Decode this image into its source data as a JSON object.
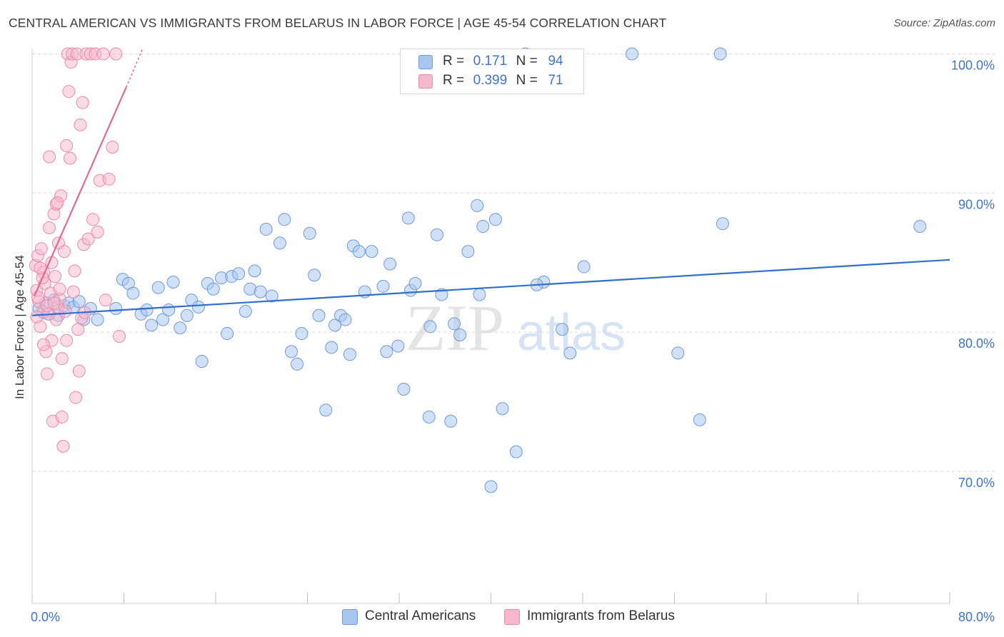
{
  "title": "CENTRAL AMERICAN VS IMMIGRANTS FROM BELARUS IN LABOR FORCE | AGE 45-54 CORRELATION CHART",
  "source": "Source: ZipAtlas.com",
  "watermark": {
    "zip": "ZIP",
    "atlas": "atlas"
  },
  "legend": {
    "r_label": "R =",
    "n_label": "N =",
    "series": [
      {
        "name": "Central Americans",
        "r": "0.171",
        "n": "94"
      },
      {
        "name": "Immigrants from Belarus",
        "r": "0.399",
        "n": "71"
      }
    ]
  },
  "colors": {
    "blue_fill": "#a9c7ee",
    "blue_stroke": "#6f9ad8",
    "blue_line": "#2f6fcd",
    "pink_fill": "#f6b8cb",
    "pink_stroke": "#ea8aa9",
    "pink_line": "#e2679a",
    "axis_text": "#3f74c8",
    "grid": "#d9d9d9"
  },
  "chart_data": {
    "type": "scatter",
    "title": "CENTRAL AMERICAN VS IMMIGRANTS FROM BELARUS IN LABOR FORCE | AGE 45-54 CORRELATION CHART",
    "xlabel": "",
    "ylabel": "In Labor Force | Age 45-54",
    "xlim": [
      0,
      80
    ],
    "ylim": [
      60.5,
      101
    ],
    "x_tick_labels": [
      "0.0%",
      "80.0%"
    ],
    "y_ticks": [
      70,
      80,
      90,
      100
    ],
    "y_tick_labels": [
      "70.0%",
      "80.0%",
      "90.0%",
      "100.0%"
    ],
    "grid": "horizontal dashed",
    "legend_position": "top-center",
    "series": [
      {
        "name": "Central Americans",
        "r": 0.171,
        "n": 94,
        "trend": {
          "x": [
            0,
            80
          ],
          "y": [
            81.2,
            85.2
          ]
        },
        "points": [
          [
            0.6,
            81.7
          ],
          [
            1.0,
            81.4
          ],
          [
            1.2,
            82.1
          ],
          [
            1.5,
            81.3
          ],
          [
            1.9,
            82.3
          ],
          [
            2.3,
            81.2
          ],
          [
            2.8,
            81.9
          ],
          [
            3.2,
            82.1
          ],
          [
            3.6,
            81.8
          ],
          [
            4.1,
            82.2
          ],
          [
            4.5,
            80.9
          ],
          [
            5.1,
            81.7
          ],
          [
            5.7,
            80.9
          ],
          [
            7.3,
            81.7
          ],
          [
            7.9,
            83.8
          ],
          [
            8.4,
            83.5
          ],
          [
            8.8,
            82.8
          ],
          [
            9.5,
            81.3
          ],
          [
            10.0,
            81.6
          ],
          [
            10.4,
            80.5
          ],
          [
            11.0,
            83.2
          ],
          [
            11.4,
            80.9
          ],
          [
            11.9,
            81.6
          ],
          [
            12.3,
            83.6
          ],
          [
            12.9,
            80.3
          ],
          [
            13.5,
            81.2
          ],
          [
            13.9,
            82.3
          ],
          [
            14.5,
            81.8
          ],
          [
            14.8,
            77.9
          ],
          [
            15.3,
            83.5
          ],
          [
            15.8,
            83.1
          ],
          [
            16.5,
            83.9
          ],
          [
            17.0,
            79.9
          ],
          [
            17.4,
            84.0
          ],
          [
            18.0,
            84.2
          ],
          [
            18.6,
            81.5
          ],
          [
            19.0,
            83.1
          ],
          [
            19.4,
            84.4
          ],
          [
            19.9,
            82.9
          ],
          [
            20.4,
            87.4
          ],
          [
            20.9,
            82.6
          ],
          [
            21.6,
            86.4
          ],
          [
            22.0,
            88.1
          ],
          [
            22.6,
            78.6
          ],
          [
            23.1,
            77.7
          ],
          [
            23.5,
            79.9
          ],
          [
            24.2,
            87.1
          ],
          [
            24.6,
            84.1
          ],
          [
            25.0,
            81.2
          ],
          [
            25.6,
            74.4
          ],
          [
            26.1,
            78.9
          ],
          [
            26.4,
            80.5
          ],
          [
            26.9,
            81.2
          ],
          [
            27.3,
            80.9
          ],
          [
            27.7,
            78.4
          ],
          [
            28.0,
            86.2
          ],
          [
            28.5,
            85.8
          ],
          [
            29.0,
            82.9
          ],
          [
            29.6,
            85.8
          ],
          [
            30.6,
            83.3
          ],
          [
            30.9,
            78.6
          ],
          [
            31.2,
            84.9
          ],
          [
            31.9,
            79.0
          ],
          [
            32.4,
            75.9
          ],
          [
            32.8,
            88.2
          ],
          [
            33.0,
            83.0
          ],
          [
            33.4,
            83.5
          ],
          [
            34.6,
            73.9
          ],
          [
            34.7,
            80.4
          ],
          [
            35.3,
            87.0
          ],
          [
            35.7,
            82.7
          ],
          [
            36.5,
            73.6
          ],
          [
            36.8,
            80.6
          ],
          [
            37.3,
            79.8
          ],
          [
            38.0,
            85.8
          ],
          [
            38.8,
            89.1
          ],
          [
            39.0,
            82.7
          ],
          [
            39.3,
            87.6
          ],
          [
            40.0,
            68.9
          ],
          [
            40.4,
            88.1
          ],
          [
            41.0,
            74.5
          ],
          [
            42.2,
            71.4
          ],
          [
            43.0,
            100.0
          ],
          [
            44.6,
            83.6
          ],
          [
            46.2,
            80.2
          ],
          [
            46.9,
            78.5
          ],
          [
            48.1,
            84.7
          ],
          [
            52.3,
            100.0
          ],
          [
            56.3,
            78.5
          ],
          [
            58.2,
            73.7
          ],
          [
            60.0,
            100.0
          ],
          [
            60.2,
            87.8
          ],
          [
            77.4,
            87.6
          ],
          [
            44.0,
            83.4
          ]
        ]
      },
      {
        "name": "Immigrants from Belarus",
        "r": 0.399,
        "n": 71,
        "trend": {
          "x": [
            0.2,
            8.2
          ],
          "y": [
            82.6,
            97.6
          ]
        },
        "trend_extension": {
          "x": [
            8.2,
            9.6
          ],
          "y": [
            97.6,
            100.3
          ]
        },
        "points": [
          [
            0.3,
            84.8
          ],
          [
            0.4,
            83.0
          ],
          [
            0.5,
            85.5
          ],
          [
            0.6,
            82.2
          ],
          [
            0.7,
            80.4
          ],
          [
            0.8,
            86.0
          ],
          [
            0.9,
            81.5
          ],
          [
            1.0,
            84.3
          ],
          [
            1.1,
            83.5
          ],
          [
            1.2,
            78.6
          ],
          [
            1.3,
            77.0
          ],
          [
            1.4,
            81.3
          ],
          [
            1.5,
            87.5
          ],
          [
            1.6,
            82.8
          ],
          [
            1.7,
            79.4
          ],
          [
            1.8,
            73.6
          ],
          [
            1.9,
            88.5
          ],
          [
            2.0,
            84.0
          ],
          [
            2.1,
            89.2
          ],
          [
            2.2,
            81.8
          ],
          [
            2.3,
            86.4
          ],
          [
            2.4,
            82.4
          ],
          [
            2.5,
            89.8
          ],
          [
            2.6,
            73.9
          ],
          [
            2.7,
            71.8
          ],
          [
            2.8,
            85.8
          ],
          [
            2.9,
            81.5
          ],
          [
            3.0,
            93.4
          ],
          [
            3.1,
            100.0
          ],
          [
            3.2,
            97.3
          ],
          [
            3.3,
            92.5
          ],
          [
            3.4,
            99.4
          ],
          [
            3.5,
            100.0
          ],
          [
            3.6,
            82.9
          ],
          [
            3.7,
            84.4
          ],
          [
            3.8,
            75.3
          ],
          [
            3.9,
            100.0
          ],
          [
            4.0,
            80.2
          ],
          [
            4.1,
            77.2
          ],
          [
            4.2,
            94.9
          ],
          [
            4.3,
            81.0
          ],
          [
            4.4,
            96.5
          ],
          [
            4.5,
            86.3
          ],
          [
            4.6,
            81.4
          ],
          [
            4.7,
            100.0
          ],
          [
            4.9,
            86.7
          ],
          [
            5.1,
            100.0
          ],
          [
            5.3,
            88.1
          ],
          [
            5.5,
            100.0
          ],
          [
            5.7,
            87.2
          ],
          [
            5.9,
            90.9
          ],
          [
            6.2,
            100.0
          ],
          [
            6.4,
            82.3
          ],
          [
            6.7,
            91.0
          ],
          [
            7.0,
            93.3
          ],
          [
            7.3,
            100.0
          ],
          [
            7.6,
            79.7
          ],
          [
            0.5,
            82.5
          ],
          [
            0.9,
            83.9
          ],
          [
            1.3,
            81.9
          ],
          [
            1.7,
            85.0
          ],
          [
            2.1,
            80.9
          ],
          [
            2.4,
            83.1
          ],
          [
            0.4,
            81.1
          ],
          [
            1.0,
            79.1
          ],
          [
            1.5,
            92.6
          ],
          [
            2.2,
            89.3
          ],
          [
            2.6,
            78.1
          ],
          [
            3.0,
            79.4
          ],
          [
            0.7,
            84.6
          ],
          [
            1.9,
            82.1
          ]
        ]
      }
    ]
  }
}
